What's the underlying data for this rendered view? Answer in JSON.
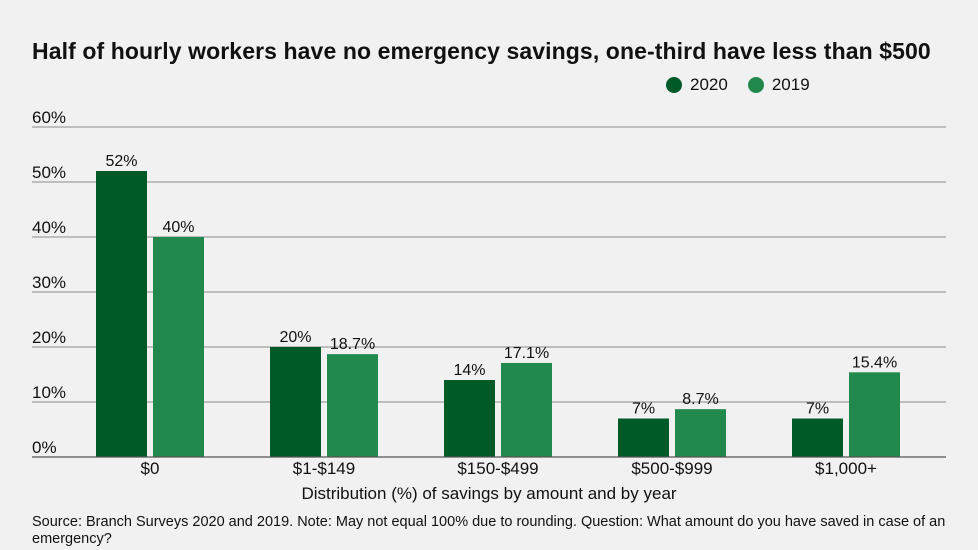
{
  "chart_data": {
    "type": "bar",
    "title": "Half of hourly workers have no emergency savings, one-third have less than $500",
    "xlabel": "Distribution (%) of savings by amount and by year",
    "ylabel": "",
    "categories": [
      "$0",
      "$1-$149",
      "$150-$499",
      "$500-$999",
      "$1,000+"
    ],
    "series": [
      {
        "name": "2020",
        "values": [
          52,
          20,
          14,
          7,
          7
        ],
        "labels": [
          "52%",
          "20%",
          "14%",
          "7%",
          "7%"
        ],
        "color": "#005a27"
      },
      {
        "name": "2019",
        "values": [
          40,
          18.7,
          17.1,
          8.7,
          15.4
        ],
        "labels": [
          "40%",
          "18.7%",
          "17.1%",
          "8.7%",
          "15.4%"
        ],
        "color": "#22894d"
      }
    ],
    "ylim": [
      0,
      60
    ],
    "yticks": [
      0,
      10,
      20,
      30,
      40,
      50,
      60
    ],
    "ytick_labels": [
      "0%",
      "10%",
      "20%",
      "30%",
      "40%",
      "50%",
      "60%"
    ],
    "grid": true,
    "legend_position": "top-right"
  },
  "source": "Source: Branch Surveys 2020 and 2019. Note: May not equal 100% due to rounding. Question: What amount do you have saved in case of an emergency?",
  "colors": {
    "gridline": "#8c8c8c",
    "axis": "#555555",
    "background": "#f0f1f0"
  }
}
